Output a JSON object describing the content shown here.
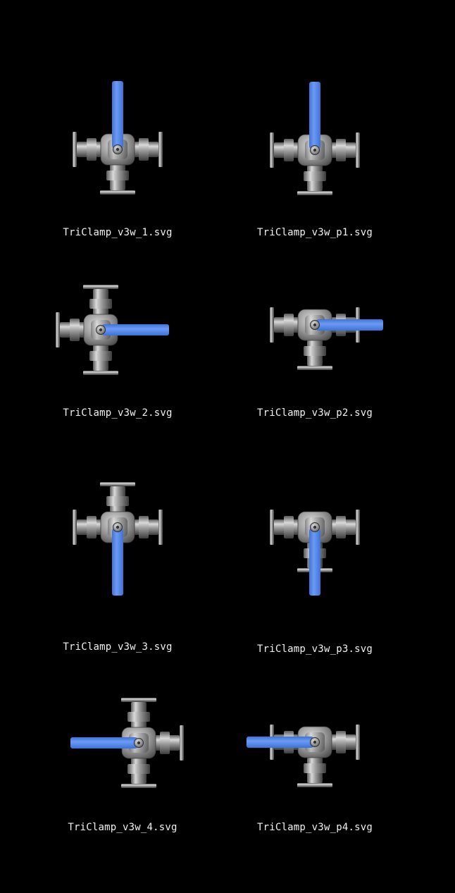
{
  "colors": {
    "background": "#000000",
    "handle": "#5b8ff0",
    "metal": "#9a9a9a",
    "label": "#f2f2f2"
  },
  "items": [
    {
      "label": "TriClamp_v3w_1.svg",
      "ports": [
        "left",
        "right",
        "bottom"
      ],
      "handle": "up",
      "full": true
    },
    {
      "label": "TriClamp_v3w_p1.svg",
      "ports": [
        "left",
        "right",
        "bottom"
      ],
      "handle": "up",
      "full": false
    },
    {
      "label": "TriClamp_v3w_2.svg",
      "ports": [
        "left",
        "top",
        "bottom"
      ],
      "handle": "right",
      "full": true
    },
    {
      "label": "TriClamp_v3w_p2.svg",
      "ports": [
        "left",
        "right",
        "bottom"
      ],
      "handle": "right",
      "full": false
    },
    {
      "label": "TriClamp_v3w_3.svg",
      "ports": [
        "left",
        "right",
        "top"
      ],
      "handle": "down",
      "full": true
    },
    {
      "label": "TriClamp_v3w_p3.svg",
      "ports": [
        "left",
        "right",
        "bottom"
      ],
      "handle": "down",
      "full": false
    },
    {
      "label": "TriClamp_v3w_4.svg",
      "ports": [
        "right",
        "top",
        "bottom"
      ],
      "handle": "left",
      "full": true
    },
    {
      "label": "TriClamp_v3w_p4.svg",
      "ports": [
        "left",
        "right",
        "bottom"
      ],
      "handle": "left",
      "full": false
    }
  ]
}
